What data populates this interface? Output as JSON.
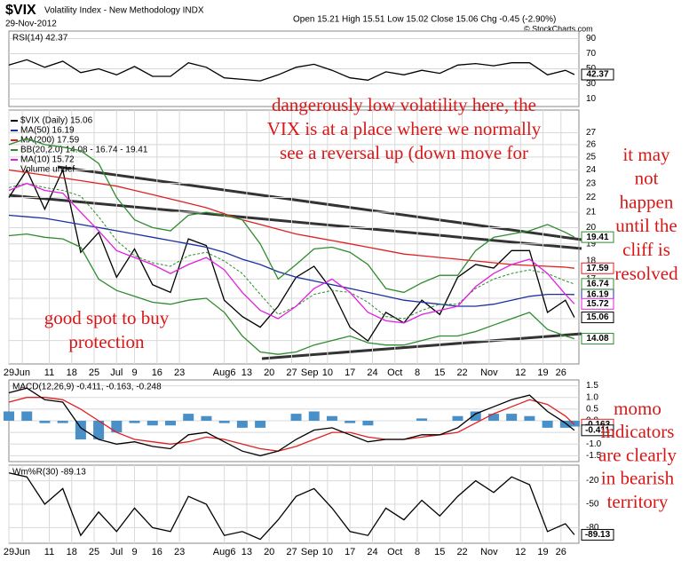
{
  "header": {
    "symbol": "$VIX",
    "name": "Volatility Index - New Methodology INDX",
    "date": "29-Nov-2012",
    "quote": "Open 15.21  High 15.51  Low 15.02  Close 15.06  Chg -0.45 (-2.90%)",
    "credit": "© StockCharts.com"
  },
  "chart_data": [
    {
      "type": "line",
      "title": "RSI(14) 42.37",
      "x": [
        0,
        4,
        8,
        12,
        16,
        20,
        24,
        28,
        32,
        36,
        40,
        44,
        48,
        52,
        56,
        60,
        64,
        68,
        72,
        76,
        80,
        84,
        88,
        92,
        96,
        100,
        104,
        108,
        112,
        116,
        120,
        124,
        126
      ],
      "xlim": [
        0,
        127
      ],
      "ylim": [
        0,
        100
      ],
      "yticks": [
        10,
        30,
        50,
        70,
        90
      ],
      "grid": true,
      "series": [
        {
          "color": "#000000",
          "values": [
            55,
            62,
            52,
            60,
            45,
            50,
            42,
            53,
            40,
            40,
            58,
            52,
            38,
            36,
            34,
            42,
            52,
            56,
            48,
            38,
            35,
            46,
            42,
            48,
            44,
            55,
            57,
            54,
            58,
            58,
            42,
            48,
            42.37
          ]
        }
      ]
    },
    {
      "type": "line",
      "log_scale": true,
      "grid": true,
      "x": [
        0,
        4,
        8,
        12,
        16,
        20,
        24,
        28,
        32,
        36,
        40,
        44,
        48,
        52,
        56,
        60,
        64,
        68,
        72,
        76,
        80,
        84,
        88,
        92,
        96,
        100,
        104,
        108,
        112,
        116,
        120,
        124,
        126
      ],
      "xlim": [
        0,
        127
      ],
      "ylim": [
        13,
        29
      ],
      "yticks": [
        14,
        15,
        16,
        17,
        18,
        19,
        20,
        21,
        22,
        23,
        24,
        25,
        26,
        27
      ],
      "xticks": [
        {
          "value": 0,
          "label": "29"
        },
        {
          "value": 3,
          "label": "Jun"
        },
        {
          "value": 9,
          "label": "11"
        },
        {
          "value": 14,
          "label": "18"
        },
        {
          "value": 19,
          "label": "25"
        },
        {
          "value": 24,
          "label": "Jul"
        },
        {
          "value": 28,
          "label": "9"
        },
        {
          "value": 33,
          "label": "16"
        },
        {
          "value": 38,
          "label": "23"
        },
        {
          "value": 48,
          "label": "Aug6"
        },
        {
          "value": 53,
          "label": "13"
        },
        {
          "value": 58,
          "label": "20"
        },
        {
          "value": 63,
          "label": "27"
        },
        {
          "value": 67,
          "label": "Sep"
        },
        {
          "value": 71,
          "label": "10"
        },
        {
          "value": 76,
          "label": "17"
        },
        {
          "value": 81,
          "label": "24"
        },
        {
          "value": 86,
          "label": "Oct"
        },
        {
          "value": 91,
          "label": "8"
        },
        {
          "value": 96,
          "label": "15"
        },
        {
          "value": 101,
          "label": "22"
        },
        {
          "value": 107,
          "label": "Nov"
        },
        {
          "value": 114,
          "label": "12"
        },
        {
          "value": 119,
          "label": "19"
        },
        {
          "value": 123,
          "label": "26"
        }
      ],
      "legend_notes": [
        "Volume undef"
      ],
      "series": [
        {
          "name": "$VIX (Daily) 15.06",
          "color": "#000000",
          "values": [
            22,
            24,
            21.2,
            24,
            18.5,
            19.7,
            17.1,
            18.7,
            16.7,
            16.3,
            19.3,
            18.9,
            15.9,
            15.1,
            14.6,
            15.6,
            17.1,
            17.7,
            16.4,
            14.6,
            13.98,
            15.3,
            14.8,
            15.9,
            15.2,
            17.1,
            17.8,
            17.6,
            18.6,
            18.6,
            15.3,
            15.9,
            15.06
          ]
        },
        {
          "name": "MA(50) 16.19",
          "color": "#1a2fa0",
          "values": [
            20.8,
            20.7,
            20.6,
            20.4,
            20.2,
            20.0,
            19.8,
            19.6,
            19.4,
            19.2,
            19.0,
            18.8,
            18.5,
            18.1,
            17.8,
            17.4,
            17.1,
            16.9,
            16.7,
            16.5,
            16.3,
            16.1,
            15.9,
            15.8,
            15.7,
            15.6,
            15.6,
            15.7,
            15.9,
            16.1,
            16.2,
            16.2,
            16.19
          ]
        },
        {
          "name": "MA(200) 17.59",
          "color": "#e02020",
          "values": [
            24.0,
            23.8,
            23.6,
            23.4,
            23.2,
            23.0,
            22.8,
            22.5,
            22.2,
            21.9,
            21.6,
            21.3,
            20.9,
            20.5,
            20.2,
            19.9,
            19.6,
            19.4,
            19.2,
            19.0,
            18.8,
            18.6,
            18.4,
            18.3,
            18.2,
            18.1,
            18.0,
            17.9,
            17.8,
            17.75,
            17.7,
            17.65,
            17.59
          ]
        },
        {
          "name": "BB(20,2.0) 14.08 - 16.74 - 19.41",
          "color": "#2e8b2e",
          "dash": true,
          "values": [
            22.7,
            23.0,
            22.7,
            22.5,
            22.1,
            20.7,
            19.2,
            18.3,
            17.9,
            17.7,
            18.3,
            18.5,
            18.0,
            17.3,
            16.2,
            15.2,
            15.6,
            16.2,
            16.4,
            16.3,
            15.8,
            15.1,
            15.0,
            15.4,
            15.7,
            15.7,
            16.5,
            17.0,
            17.3,
            17.5,
            17.3,
            16.9,
            16.74
          ]
        },
        {
          "color": "#2e8b2e",
          "values": [
            26,
            26.5,
            26,
            25.8,
            25.5,
            24.5,
            22,
            20.5,
            20.0,
            19.8,
            20.8,
            21.0,
            20.8,
            20.5,
            19.0,
            17.0,
            17.8,
            18.7,
            18.8,
            18.5,
            17.8,
            16.5,
            16.3,
            16.8,
            17.2,
            17.2,
            18.6,
            19.4,
            19.6,
            19.8,
            20.2,
            19.7,
            19.41
          ]
        },
        {
          "color": "#2e8b2e",
          "values": [
            19.5,
            19.6,
            19.4,
            19.3,
            18.8,
            17.0,
            16.4,
            16.1,
            15.8,
            15.7,
            15.9,
            16.0,
            15.3,
            14.2,
            13.5,
            13.4,
            13.5,
            13.8,
            14.0,
            14.2,
            13.9,
            13.8,
            13.8,
            14.0,
            14.2,
            14.2,
            14.4,
            14.7,
            15.0,
            15.3,
            14.5,
            14.2,
            14.08
          ]
        },
        {
          "name": "MA(10) 15.72",
          "color": "#e020e0",
          "values": [
            22.5,
            23.0,
            22.5,
            22.3,
            21.0,
            19.8,
            18.6,
            18.2,
            17.8,
            17.3,
            17.8,
            18.2,
            17.5,
            16.3,
            15.4,
            15.0,
            15.6,
            16.5,
            17.0,
            16.3,
            15.3,
            14.9,
            14.8,
            15.2,
            15.4,
            15.6,
            16.6,
            17.3,
            17.8,
            18.1,
            17.3,
            16.2,
            15.72
          ]
        }
      ]
    },
    {
      "type": "line",
      "title": "MACD(12,26,9) -0.411, -0.163, -0.248",
      "grid": true,
      "x": [
        0,
        4,
        8,
        12,
        16,
        20,
        24,
        28,
        32,
        36,
        40,
        44,
        48,
        52,
        56,
        60,
        64,
        68,
        72,
        76,
        80,
        84,
        88,
        92,
        96,
        100,
        104,
        108,
        112,
        116,
        120,
        124,
        126
      ],
      "xlim": [
        0,
        127
      ],
      "ylim": [
        -1.75,
        1.75
      ],
      "yticks": [
        1.5,
        {
          "value": 1,
          "label": "1.0"
        },
        0.5,
        {
          "value": 0,
          "label": "0.0"
        },
        -0.5,
        {
          "value": -1,
          "label": "-1.0"
        },
        -1.5
      ],
      "series": [
        {
          "color": "#4a90c8",
          "bars": true,
          "values": [
            0.4,
            0.4,
            -0.1,
            -0.1,
            -0.8,
            -0.8,
            -0.5,
            -0.1,
            -0.2,
            -0.2,
            0.3,
            0.2,
            -0.1,
            -0.3,
            -0.3,
            0.0,
            0.3,
            0.4,
            0.2,
            -0.1,
            -0.2,
            0.0,
            0.0,
            0.1,
            0.0,
            0.2,
            0.4,
            0.3,
            0.3,
            0.2,
            -0.3,
            -0.3,
            -0.248
          ]
        },
        {
          "color": "#e02020",
          "values": [
            0.8,
            1.0,
            1.0,
            0.9,
            0.5,
            0.0,
            -0.5,
            -0.8,
            -0.9,
            -1.0,
            -0.9,
            -0.7,
            -0.8,
            -1.0,
            -1.2,
            -1.3,
            -1.1,
            -0.8,
            -0.5,
            -0.5,
            -0.7,
            -0.8,
            -0.8,
            -0.7,
            -0.6,
            -0.5,
            -0.1,
            0.3,
            0.6,
            0.9,
            0.7,
            0.2,
            -0.163
          ]
        },
        {
          "color": "#000000",
          "values": [
            1.2,
            1.4,
            0.9,
            0.8,
            -0.3,
            -0.8,
            -1.0,
            -0.9,
            -1.1,
            -1.2,
            -0.6,
            -0.5,
            -0.9,
            -1.3,
            -1.5,
            -1.3,
            -0.8,
            -0.4,
            -0.3,
            -0.6,
            -0.9,
            -0.8,
            -0.8,
            -0.6,
            -0.6,
            -0.3,
            0.3,
            0.6,
            0.9,
            1.1,
            0.4,
            -0.1,
            -0.411
          ]
        }
      ]
    },
    {
      "type": "line",
      "title": "Wm%R(30) -89.13",
      "grid": true,
      "x": [
        0,
        4,
        8,
        12,
        16,
        20,
        24,
        28,
        32,
        36,
        40,
        44,
        48,
        52,
        56,
        60,
        64,
        68,
        72,
        76,
        80,
        84,
        88,
        92,
        96,
        100,
        104,
        108,
        112,
        116,
        120,
        124,
        126
      ],
      "xlim": [
        0,
        127
      ],
      "ylim": [
        -100,
        0
      ],
      "yticks": [
        -20,
        -50,
        -80
      ],
      "xticks": [
        {
          "value": 0,
          "label": "29"
        },
        {
          "value": 3,
          "label": "Jun"
        },
        {
          "value": 9,
          "label": "11"
        },
        {
          "value": 14,
          "label": "18"
        },
        {
          "value": 19,
          "label": "25"
        },
        {
          "value": 24,
          "label": "Jul"
        },
        {
          "value": 28,
          "label": "9"
        },
        {
          "value": 33,
          "label": "16"
        },
        {
          "value": 38,
          "label": "23"
        },
        {
          "value": 48,
          "label": "Aug6"
        },
        {
          "value": 53,
          "label": "13"
        },
        {
          "value": 58,
          "label": "20"
        },
        {
          "value": 63,
          "label": "27"
        },
        {
          "value": 67,
          "label": "Sep"
        },
        {
          "value": 71,
          "label": "10"
        },
        {
          "value": 76,
          "label": "17"
        },
        {
          "value": 81,
          "label": "24"
        },
        {
          "value": 86,
          "label": "Oct"
        },
        {
          "value": 91,
          "label": "8"
        },
        {
          "value": 96,
          "label": "15"
        },
        {
          "value": 101,
          "label": "22"
        },
        {
          "value": 107,
          "label": "Nov"
        },
        {
          "value": 114,
          "label": "12"
        },
        {
          "value": 119,
          "label": "19"
        },
        {
          "value": 123,
          "label": "26"
        }
      ],
      "series": [
        {
          "color": "#000000",
          "values": [
            -10,
            -15,
            -50,
            -30,
            -90,
            -60,
            -85,
            -55,
            -80,
            -85,
            -40,
            -50,
            -90,
            -85,
            -95,
            -70,
            -40,
            -30,
            -55,
            -85,
            -90,
            -55,
            -70,
            -45,
            -65,
            -40,
            -20,
            -35,
            -15,
            -25,
            -85,
            -75,
            -89.13
          ]
        }
      ]
    }
  ],
  "annotations": [
    [
      "dangerously low volatility here, the",
      "VIX is at a place where we normally",
      "see a reversal up (down move for"
    ],
    [
      "it may",
      "not",
      "happen",
      "until the",
      "cliff is",
      "resolved"
    ],
    [
      "good spot to buy",
      "protection"
    ],
    [
      "momo",
      "indicators",
      "are clearly",
      "in bearish",
      "territory"
    ]
  ]
}
